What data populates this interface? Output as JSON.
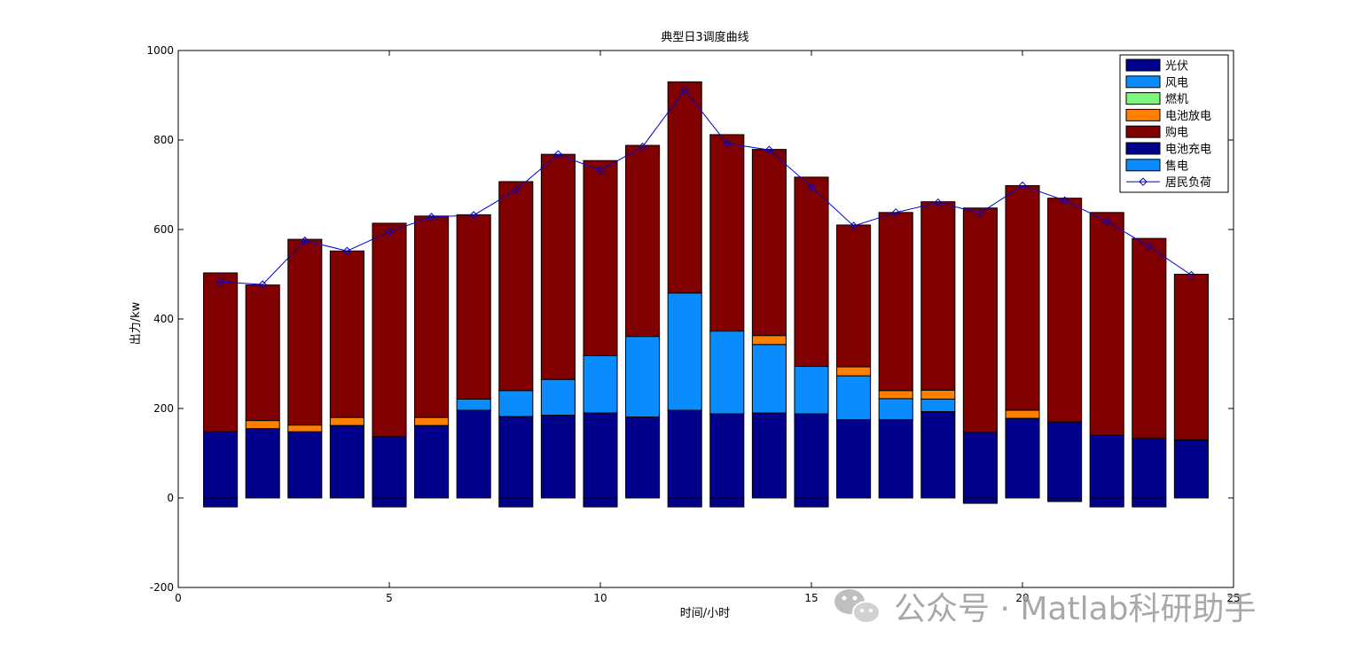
{
  "chart_data": {
    "type": "bar",
    "title": "典型日3调度曲线",
    "xlabel": "时间/小时",
    "ylabel": "出力/kw",
    "xlim": [
      0,
      25
    ],
    "ylim": [
      -200,
      1000
    ],
    "xticks": [
      0,
      5,
      10,
      15,
      20,
      25
    ],
    "yticks": [
      -200,
      0,
      200,
      400,
      600,
      800,
      1000
    ],
    "grid": false,
    "legend_position": "top-right",
    "stacked": true,
    "x": [
      1,
      2,
      3,
      4,
      5,
      6,
      7,
      8,
      9,
      10,
      11,
      12,
      13,
      14,
      15,
      16,
      17,
      18,
      19,
      20,
      21,
      22,
      23,
      24
    ],
    "series": [
      {
        "name": "光伏",
        "color": "#00008b",
        "values": [
          148,
          155,
          148,
          162,
          137,
          162,
          196,
          182,
          185,
          190,
          181,
          196,
          188,
          190,
          188,
          175,
          175,
          193,
          147,
          178,
          170,
          140,
          133,
          130
        ]
      },
      {
        "name": "风电",
        "color": "#0a8cff",
        "values": [
          0,
          0,
          0,
          0,
          0,
          0,
          25,
          58,
          80,
          128,
          180,
          262,
          185,
          153,
          106,
          98,
          47,
          28,
          0,
          0,
          0,
          0,
          0,
          0
        ]
      },
      {
        "name": "燃机",
        "color": "#7ff77f",
        "values": [
          0,
          0,
          0,
          0,
          0,
          0,
          0,
          0,
          0,
          0,
          0,
          0,
          0,
          0,
          0,
          0,
          0,
          0,
          0,
          0,
          0,
          0,
          0,
          0
        ]
      },
      {
        "name": "电池放电",
        "color": "#ff7f00",
        "values": [
          0,
          18,
          15,
          18,
          0,
          18,
          0,
          0,
          0,
          0,
          0,
          0,
          0,
          20,
          0,
          20,
          18,
          20,
          0,
          18,
          0,
          0,
          0,
          0
        ]
      },
      {
        "name": "购电",
        "color": "#800000",
        "values": [
          355,
          303,
          415,
          372,
          477,
          450,
          412,
          467,
          503,
          436,
          427,
          472,
          439,
          416,
          423,
          317,
          398,
          421,
          501,
          502,
          500,
          498,
          447,
          370
        ]
      },
      {
        "name": "电池充电",
        "color": "#00008b",
        "values": [
          -20,
          0,
          0,
          0,
          -20,
          0,
          0,
          -20,
          0,
          -20,
          0,
          -20,
          -20,
          0,
          -20,
          0,
          0,
          0,
          -12,
          0,
          -8,
          -20,
          -20,
          0
        ]
      },
      {
        "name": "售电",
        "color": "#0a8cff",
        "values": [
          0,
          0,
          0,
          0,
          0,
          0,
          0,
          0,
          0,
          0,
          0,
          0,
          0,
          0,
          0,
          0,
          0,
          0,
          0,
          0,
          0,
          0,
          0,
          0
        ]
      }
    ],
    "line_series": {
      "name": "居民负荷",
      "color": "#0000cc",
      "marker": "diamond",
      "values": [
        483,
        477,
        575,
        552,
        595,
        628,
        632,
        688,
        768,
        732,
        785,
        912,
        792,
        778,
        695,
        608,
        638,
        660,
        637,
        698,
        665,
        618,
        562,
        498
      ]
    }
  },
  "watermark": {
    "text": "公众号 · Matlab科研助手",
    "icon": "wechat-icon"
  }
}
